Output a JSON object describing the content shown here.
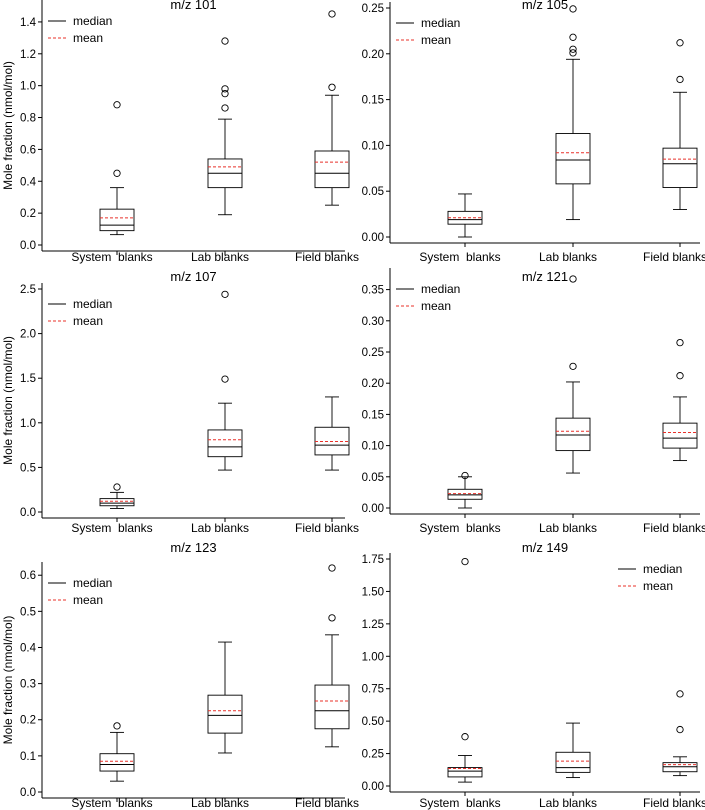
{
  "shared": {
    "ylabel": "Mole fraction (nmol/mol)",
    "categories": [
      "System  blanks",
      "Lab blanks",
      "Field blanks"
    ],
    "legend": {
      "median": "median",
      "mean": "mean"
    },
    "colors": {
      "median": "#000000",
      "mean": "#e8312a",
      "box": "#000000",
      "axis": "#000000"
    }
  },
  "chart_data": [
    {
      "type": "box",
      "title": "m/z 101",
      "ylabel": "Mole fraction (nmol/mol)",
      "legend_position": "top-left",
      "ylim": [
        0,
        1.5
      ],
      "yticks": [
        "0.0",
        "0.2",
        "0.4",
        "0.6",
        "0.8",
        "1.0",
        "1.2",
        "1.4"
      ],
      "series": [
        {
          "category": "System  blanks",
          "whisker_low": 0.065,
          "q1": 0.09,
          "median": 0.125,
          "q3": 0.225,
          "whisker_high": 0.36,
          "mean": 0.17,
          "outliers": [
            0.45,
            0.88
          ]
        },
        {
          "category": "Lab blanks",
          "whisker_low": 0.19,
          "q1": 0.36,
          "median": 0.45,
          "q3": 0.54,
          "whisker_high": 0.79,
          "mean": 0.49,
          "outliers": [
            0.86,
            0.95,
            0.98,
            1.28
          ]
        },
        {
          "category": "Field blanks",
          "whisker_low": 0.25,
          "q1": 0.36,
          "median": 0.45,
          "q3": 0.59,
          "whisker_high": 0.94,
          "mean": 0.52,
          "outliers": [
            0.99,
            1.45
          ]
        }
      ]
    },
    {
      "type": "box",
      "title": "m/z 105",
      "ylabel": "",
      "legend_position": "top-left",
      "ylim": [
        0,
        0.25
      ],
      "yticks": [
        "0.00",
        "0.05",
        "0.10",
        "0.15",
        "0.20",
        "0.25"
      ],
      "series": [
        {
          "category": "System  blanks",
          "whisker_low": 0.0,
          "q1": 0.014,
          "median": 0.019,
          "q3": 0.028,
          "whisker_high": 0.047,
          "mean": 0.021,
          "outliers": []
        },
        {
          "category": "Lab blanks",
          "whisker_low": 0.019,
          "q1": 0.058,
          "median": 0.084,
          "q3": 0.113,
          "whisker_high": 0.194,
          "mean": 0.092,
          "outliers": [
            0.201,
            0.205,
            0.218,
            0.249
          ]
        },
        {
          "category": "Field blanks",
          "whisker_low": 0.03,
          "q1": 0.054,
          "median": 0.08,
          "q3": 0.097,
          "whisker_high": 0.158,
          "mean": 0.085,
          "outliers": [
            0.172,
            0.212
          ]
        }
      ]
    },
    {
      "type": "box",
      "title": "m/z 107",
      "ylabel": "Mole fraction (nmol/mol)",
      "legend_position": "top-left",
      "ylim": [
        0,
        2.5
      ],
      "yticks": [
        "0.0",
        "0.5",
        "1.0",
        "1.5",
        "2.0",
        "2.5"
      ],
      "series": [
        {
          "category": "System  blanks",
          "whisker_low": 0.04,
          "q1": 0.07,
          "median": 0.1,
          "q3": 0.15,
          "whisker_high": 0.22,
          "mean": 0.12,
          "outliers": [
            0.28
          ]
        },
        {
          "category": "Lab blanks",
          "whisker_low": 0.47,
          "q1": 0.62,
          "median": 0.73,
          "q3": 0.92,
          "whisker_high": 1.22,
          "mean": 0.81,
          "outliers": [
            1.49,
            2.44
          ]
        },
        {
          "category": "Field blanks",
          "whisker_low": 0.47,
          "q1": 0.64,
          "median": 0.75,
          "q3": 0.95,
          "whisker_high": 1.29,
          "mean": 0.79,
          "outliers": []
        }
      ]
    },
    {
      "type": "box",
      "title": "m/z 121",
      "ylabel": "",
      "legend_position": "top-left",
      "ylim": [
        0,
        0.375
      ],
      "yticks": [
        "0.00",
        "0.05",
        "0.10",
        "0.15",
        "0.20",
        "0.25",
        "0.30",
        "0.35"
      ],
      "series": [
        {
          "category": "System  blanks",
          "whisker_low": 0.0,
          "q1": 0.014,
          "median": 0.021,
          "q3": 0.03,
          "whisker_high": 0.05,
          "mean": 0.023,
          "outliers": [
            0.052
          ]
        },
        {
          "category": "Lab blanks",
          "whisker_low": 0.056,
          "q1": 0.092,
          "median": 0.117,
          "q3": 0.144,
          "whisker_high": 0.202,
          "mean": 0.123,
          "outliers": [
            0.227,
            0.367
          ]
        },
        {
          "category": "Field blanks",
          "whisker_low": 0.076,
          "q1": 0.096,
          "median": 0.112,
          "q3": 0.136,
          "whisker_high": 0.178,
          "mean": 0.121,
          "outliers": [
            0.212,
            0.265
          ]
        }
      ]
    },
    {
      "type": "box",
      "title": "m/z 123",
      "ylabel": "Mole fraction (nmol/mol)",
      "legend_position": "top-left",
      "ylim": [
        0,
        0.62
      ],
      "yticks": [
        "0.0",
        "0.1",
        "0.2",
        "0.3",
        "0.4",
        "0.5",
        "0.6"
      ],
      "series": [
        {
          "category": "System  blanks",
          "whisker_low": 0.03,
          "q1": 0.058,
          "median": 0.076,
          "q3": 0.106,
          "whisker_high": 0.165,
          "mean": 0.085,
          "outliers": [
            0.183
          ]
        },
        {
          "category": "Lab blanks",
          "whisker_low": 0.108,
          "q1": 0.163,
          "median": 0.212,
          "q3": 0.268,
          "whisker_high": 0.415,
          "mean": 0.225,
          "outliers": []
        },
        {
          "category": "Field blanks",
          "whisker_low": 0.125,
          "q1": 0.175,
          "median": 0.225,
          "q3": 0.296,
          "whisker_high": 0.435,
          "mean": 0.252,
          "outliers": [
            0.482,
            0.62
          ]
        }
      ]
    },
    {
      "type": "box",
      "title": "m/z 149",
      "ylabel": "",
      "legend_position": "top-right",
      "ylim": [
        0,
        1.75
      ],
      "yticks": [
        "0.00",
        "0.25",
        "0.50",
        "0.75",
        "1.00",
        "1.25",
        "1.50",
        "1.75"
      ],
      "series": [
        {
          "category": "System  blanks",
          "whisker_low": 0.03,
          "q1": 0.07,
          "median": 0.115,
          "q3": 0.142,
          "whisker_high": 0.235,
          "mean": 0.135,
          "outliers": [
            0.38,
            1.73
          ]
        },
        {
          "category": "Lab blanks",
          "whisker_low": 0.065,
          "q1": 0.105,
          "median": 0.142,
          "q3": 0.26,
          "whisker_high": 0.485,
          "mean": 0.192,
          "outliers": []
        },
        {
          "category": "Field blanks",
          "whisker_low": 0.08,
          "q1": 0.11,
          "median": 0.148,
          "q3": 0.18,
          "whisker_high": 0.225,
          "mean": 0.165,
          "outliers": [
            0.435,
            0.71
          ]
        }
      ]
    }
  ]
}
